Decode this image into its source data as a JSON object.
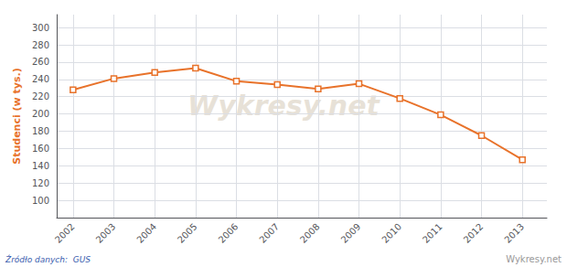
{
  "chart_data": {
    "type": "line",
    "ylabel": "Studenci (w tys.)",
    "x": [
      2002,
      2003,
      2004,
      2005,
      2006,
      2007,
      2008,
      2009,
      2010,
      2011,
      2012,
      2013
    ],
    "values": [
      228,
      241,
      248,
      253,
      238,
      234,
      229,
      235,
      218,
      199,
      175,
      147
    ],
    "color": "#E8722A",
    "marker": "square",
    "xlim": [
      2001.6,
      2013.6
    ],
    "xticks": [
      2002,
      2003,
      2004,
      2005,
      2006,
      2007,
      2008,
      2009,
      2010,
      2011,
      2012,
      2013
    ],
    "ylim": [
      80,
      315
    ],
    "yticks": [
      100,
      120,
      140,
      160,
      180,
      200,
      220,
      240,
      260,
      280,
      300
    ],
    "grid": true,
    "annotations": [
      "Źródło danych:  GUS",
      "Wykresy.net",
      "Wykresy.net"
    ]
  }
}
